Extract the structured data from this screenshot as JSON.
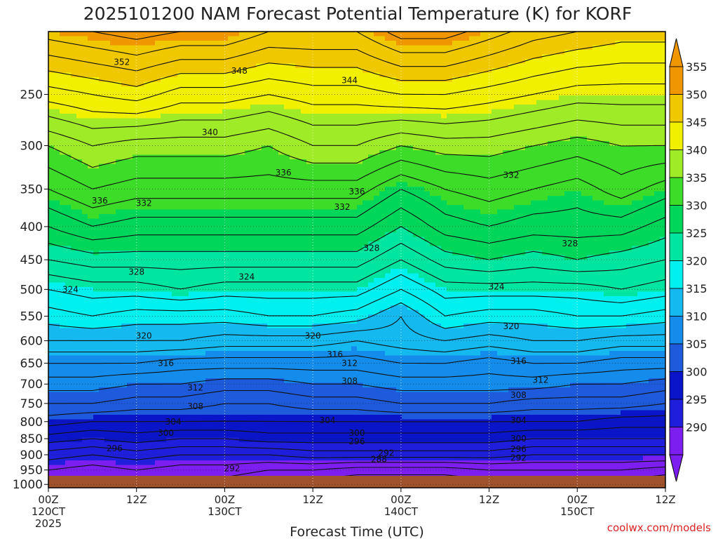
{
  "chart_data": {
    "type": "heatmap",
    "title": "2025101200 NAM Forecast Potential Temperature (K) for KORF",
    "xlabel": "Forecast Time (UTC)",
    "ylabel": "",
    "credit": "coolwx.com/models",
    "units": "K",
    "x_ticks": [
      {
        "hour": 0,
        "lines": [
          "00Z",
          "120CT",
          "2025"
        ]
      },
      {
        "hour": 12,
        "lines": [
          "12Z"
        ]
      },
      {
        "hour": 24,
        "lines": [
          "00Z",
          "130CT"
        ]
      },
      {
        "hour": 36,
        "lines": [
          "12Z"
        ]
      },
      {
        "hour": 48,
        "lines": [
          "00Z",
          "140CT"
        ]
      },
      {
        "hour": 60,
        "lines": [
          "12Z"
        ]
      },
      {
        "hour": 72,
        "lines": [
          "00Z",
          "150CT"
        ]
      },
      {
        "hour": 84,
        "lines": [
          "12Z"
        ]
      }
    ],
    "x_range_hours": [
      0,
      84
    ],
    "y_ticks_hpa": [
      250,
      300,
      350,
      400,
      450,
      500,
      550,
      600,
      650,
      700,
      750,
      800,
      850,
      900,
      950,
      1000
    ],
    "y_range_hpa": [
      200,
      1012
    ],
    "colorbar": {
      "levels": [
        290,
        295,
        300,
        305,
        310,
        315,
        320,
        325,
        330,
        335,
        340,
        345,
        350,
        355
      ],
      "colors": [
        "#7d1ef0",
        "#1e1edc",
        "#0a14c8",
        "#1e5adc",
        "#148ceb",
        "#14b9f0",
        "#00f0f0",
        "#00e6a0",
        "#00d75a",
        "#3cdc28",
        "#a0eb28",
        "#f0f000",
        "#f0c800",
        "#f09600"
      ],
      "extend": "both"
    },
    "profile_levels_hpa": [
      1000,
      950,
      900,
      850,
      800,
      750,
      700,
      650,
      600,
      550,
      500,
      450,
      400,
      350,
      300,
      250,
      200
    ],
    "time_hours": [
      0,
      6,
      12,
      18,
      24,
      30,
      36,
      42,
      48,
      54,
      60,
      66,
      72,
      78,
      84
    ],
    "theta_profiles": [
      [
        292,
        294,
        297,
        301,
        305,
        308,
        311,
        314,
        318,
        321,
        324,
        328,
        332,
        336,
        340,
        347,
        355
      ],
      [
        291,
        293,
        296,
        300,
        304,
        308,
        311,
        314,
        318,
        322,
        325,
        329,
        334,
        338,
        342,
        348,
        356
      ],
      [
        292,
        294,
        297,
        301,
        304,
        307,
        310,
        314,
        318,
        321,
        325,
        329,
        333,
        337,
        341,
        349,
        357
      ],
      [
        291,
        293,
        296,
        300,
        304,
        307,
        310,
        313,
        318,
        321,
        326,
        329,
        333,
        337,
        341,
        347,
        356
      ],
      [
        291,
        293,
        296,
        300,
        304,
        306,
        309,
        313,
        317,
        321,
        325,
        329,
        333,
        337,
        341,
        347,
        356
      ],
      [
        290,
        292,
        296,
        301,
        304,
        306,
        309,
        313,
        317,
        322,
        325,
        329,
        333,
        337,
        340,
        346,
        354
      ],
      [
        289,
        292,
        297,
        301,
        304,
        307,
        310,
        313,
        317,
        322,
        325,
        329,
        333,
        337,
        342,
        347,
        354
      ],
      [
        288,
        291,
        297,
        301,
        304,
        307,
        310,
        313,
        316,
        321,
        325,
        329,
        333,
        337,
        342,
        347,
        354
      ],
      [
        288,
        291,
        297,
        301,
        304,
        308,
        311,
        314,
        317,
        318,
        322,
        326,
        330,
        334,
        340,
        348,
        357
      ],
      [
        288,
        291,
        297,
        301,
        304,
        308,
        311,
        314,
        318,
        322,
        325,
        329,
        333,
        336,
        341,
        348,
        357
      ],
      [
        289,
        292,
        297,
        301,
        304,
        308,
        311,
        313,
        317,
        321,
        325,
        330,
        334,
        337,
        341,
        347,
        355
      ],
      [
        290,
        292,
        296,
        300,
        304,
        307,
        311,
        314,
        318,
        321,
        325,
        329,
        333,
        336,
        340,
        346,
        353
      ],
      [
        290,
        292,
        296,
        300,
        304,
        307,
        310,
        314,
        318,
        322,
        325,
        330,
        333,
        335,
        339,
        345,
        352
      ],
      [
        289,
        292,
        296,
        300,
        303,
        307,
        310,
        313,
        317,
        322,
        326,
        329,
        333,
        337,
        340,
        345,
        351
      ],
      [
        288,
        291,
        296,
        300,
        303,
        306,
        309,
        313,
        317,
        321,
        325,
        328,
        331,
        335,
        340,
        345,
        351
      ]
    ],
    "contour_interval_K": 2,
    "contour_labels": [
      {
        "value": "352",
        "hour": 10,
        "hpa": 223
      },
      {
        "value": "348",
        "hour": 26,
        "hpa": 230
      },
      {
        "value": "344",
        "hour": 41,
        "hpa": 238
      },
      {
        "value": "340",
        "hour": 22,
        "hpa": 286
      },
      {
        "value": "336",
        "hour": 32,
        "hpa": 330
      },
      {
        "value": "336",
        "hour": 42,
        "hpa": 353
      },
      {
        "value": "336",
        "hour": 7,
        "hpa": 365
      },
      {
        "value": "332",
        "hour": 13,
        "hpa": 368
      },
      {
        "value": "332",
        "hour": 40,
        "hpa": 373
      },
      {
        "value": "332",
        "hour": 63,
        "hpa": 333
      },
      {
        "value": "328",
        "hour": 12,
        "hpa": 470
      },
      {
        "value": "328",
        "hour": 44,
        "hpa": 432
      },
      {
        "value": "328",
        "hour": 71,
        "hpa": 425
      },
      {
        "value": "324",
        "hour": 3,
        "hpa": 500
      },
      {
        "value": "324",
        "hour": 27,
        "hpa": 478
      },
      {
        "value": "324",
        "hour": 61,
        "hpa": 495
      },
      {
        "value": "320",
        "hour": 13,
        "hpa": 590
      },
      {
        "value": "320",
        "hour": 36,
        "hpa": 590
      },
      {
        "value": "320",
        "hour": 63,
        "hpa": 570
      },
      {
        "value": "316",
        "hour": 16,
        "hpa": 650
      },
      {
        "value": "316",
        "hour": 39,
        "hpa": 630
      },
      {
        "value": "316",
        "hour": 64,
        "hpa": 645
      },
      {
        "value": "312",
        "hour": 41,
        "hpa": 650
      },
      {
        "value": "312",
        "hour": 20,
        "hpa": 709
      },
      {
        "value": "312",
        "hour": 67,
        "hpa": 690
      },
      {
        "value": "308",
        "hour": 41,
        "hpa": 693
      },
      {
        "value": "308",
        "hour": 20,
        "hpa": 758
      },
      {
        "value": "308",
        "hour": 64,
        "hpa": 728
      },
      {
        "value": "304",
        "hour": 17,
        "hpa": 800
      },
      {
        "value": "304",
        "hour": 38,
        "hpa": 796
      },
      {
        "value": "304",
        "hour": 64,
        "hpa": 796
      },
      {
        "value": "300",
        "hour": 16,
        "hpa": 833
      },
      {
        "value": "300",
        "hour": 42,
        "hpa": 833
      },
      {
        "value": "300",
        "hour": 64,
        "hpa": 850
      },
      {
        "value": "296",
        "hour": 9,
        "hpa": 880
      },
      {
        "value": "296",
        "hour": 42,
        "hpa": 858
      },
      {
        "value": "296",
        "hour": 64,
        "hpa": 882
      },
      {
        "value": "292",
        "hour": 25,
        "hpa": 945
      },
      {
        "value": "292",
        "hour": 46,
        "hpa": 895
      },
      {
        "value": "292",
        "hour": 64,
        "hpa": 910
      },
      {
        "value": "288",
        "hour": 45,
        "hpa": 915
      }
    ]
  }
}
